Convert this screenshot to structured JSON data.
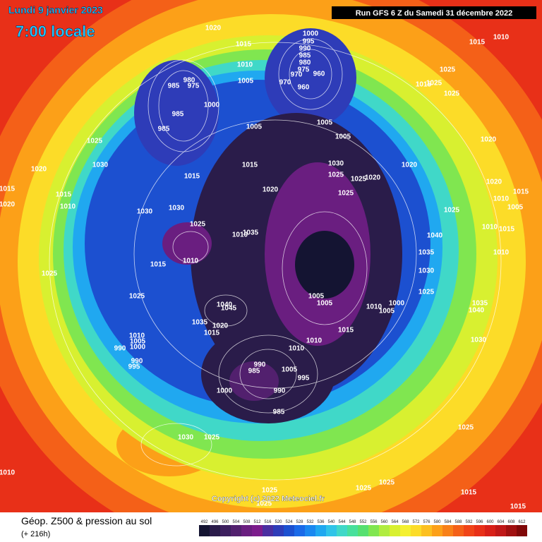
{
  "header": {
    "date": "Lundi 9 janvier 2023",
    "time": "7:00 locale",
    "run": "Run GFS 6 Z du Samedi 31 décembre 2022"
  },
  "copyright": "Copyright (c) 2022 Meteociel.fr",
  "footer": {
    "title": "Géop. Z500 & pression au sol",
    "lead": "(+ 216h)"
  },
  "color_scale": {
    "values": [
      492,
      496,
      500,
      504,
      508,
      512,
      516,
      520,
      524,
      528,
      532,
      536,
      540,
      544,
      548,
      552,
      556,
      560,
      564,
      568,
      572,
      576,
      580,
      584,
      588,
      592,
      596,
      600,
      604,
      608,
      612
    ],
    "colors": [
      "#141432",
      "#2a1c4a",
      "#3c1f5e",
      "#52206e",
      "#6a1e80",
      "#7c1c8c",
      "#4a2ea0",
      "#2e3cb8",
      "#1c50d0",
      "#1a6ae8",
      "#1a88f0",
      "#20a8f0",
      "#30c4e8",
      "#40d8c8",
      "#48e09c",
      "#56e070",
      "#80e650",
      "#b0ec40",
      "#d8f030",
      "#f4f030",
      "#fcdc28",
      "#fcc020",
      "#fca018",
      "#f88018",
      "#f46018",
      "#f04418",
      "#e83018",
      "#d82018",
      "#c01818",
      "#a01010",
      "#800808"
    ]
  },
  "isobar_labels": [
    1020,
    1000,
    995,
    990,
    985,
    980,
    975,
    970,
    960,
    970,
    960,
    1015,
    1010,
    1005,
    980,
    985,
    975,
    1000,
    985,
    985,
    1005,
    1005,
    1005,
    1025,
    1030,
    1020,
    1015,
    1015,
    1010,
    1020,
    1015,
    1015,
    1020,
    1030,
    1025,
    1025,
    1020,
    1025,
    1020,
    1020,
    1020,
    1025,
    1040,
    1035,
    1030,
    1025,
    1030,
    1030,
    1025,
    1010,
    1035,
    1010,
    1015,
    1025,
    1025,
    1005,
    1005,
    1010,
    1005,
    1000,
    1015,
    1010,
    1010,
    1040,
    1045,
    1035,
    1020,
    1015,
    1010,
    1005,
    1000,
    990,
    990,
    995,
    990,
    985,
    1005,
    995,
    990,
    1000,
    985,
    1030,
    1025,
    1025,
    1030,
    1035,
    1040,
    1010,
    1010,
    1025,
    1025,
    1025,
    1025,
    1015,
    1015,
    1010,
    1015,
    1025,
    1025,
    1025,
    1015,
    1010,
    1015,
    1005,
    1015,
    1010,
    1010
  ]
}
